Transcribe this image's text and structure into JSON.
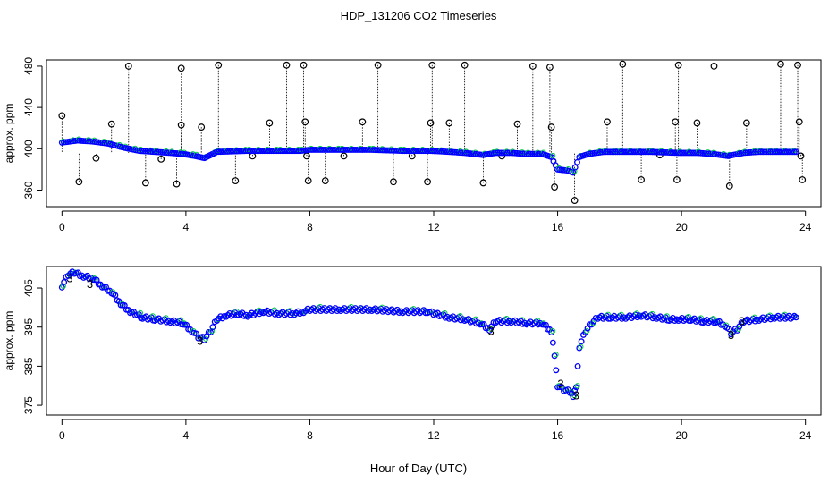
{
  "title": "HDP_131206  CO2 Timeseries",
  "xlabel": "Hour of Day (UTC)",
  "colors": {
    "outline": "#000000",
    "main": "#0000ff",
    "alt": "#00cc44",
    "spike": "#000000"
  },
  "chart_data": [
    {
      "type": "scatter",
      "ylabel": "approx. ppm",
      "xlim": [
        -0.5,
        24.5
      ],
      "ylim": [
        344,
        486
      ],
      "xticks": [
        0,
        4,
        8,
        12,
        16,
        20,
        24
      ],
      "yticks": [
        360,
        400,
        440,
        480
      ],
      "series": [
        {
          "values": [
            [
              0.0,
              406
            ],
            [
              0.5,
              408
            ],
            [
              1.0,
              407
            ],
            [
              1.5,
              405
            ],
            [
              2.0,
              401
            ],
            [
              2.5,
              398
            ],
            [
              3.0,
              397
            ],
            [
              3.5,
              396
            ],
            [
              3.9,
              395
            ],
            [
              4.3,
              393
            ],
            [
              4.6,
              391
            ],
            [
              5.0,
              397
            ],
            [
              6.0,
              398
            ],
            [
              7.0,
              398
            ],
            [
              7.7,
              398
            ],
            [
              8.0,
              399
            ],
            [
              9.0,
              399
            ],
            [
              10.0,
              399
            ],
            [
              11.0,
              398
            ],
            [
              11.9,
              398
            ],
            [
              12.5,
              397
            ],
            [
              13.0,
              396
            ],
            [
              13.6,
              394
            ],
            [
              14.0,
              396
            ],
            [
              14.5,
              396
            ],
            [
              15.0,
              395
            ],
            [
              15.5,
              395
            ],
            [
              15.8,
              392
            ],
            [
              16.0,
              380
            ],
            [
              16.3,
              379
            ],
            [
              16.5,
              377
            ],
            [
              16.7,
              392
            ],
            [
              17.0,
              395
            ],
            [
              17.5,
              397
            ],
            [
              18.0,
              397
            ],
            [
              19.0,
              397
            ],
            [
              19.9,
              396
            ],
            [
              20.5,
              396
            ],
            [
              21.0,
              395
            ],
            [
              21.5,
              393
            ],
            [
              22.0,
              396
            ],
            [
              22.5,
              397
            ],
            [
              23.0,
              397
            ],
            [
              23.7,
              397
            ]
          ]
        },
        {
          "values": [
            [
              0.0,
              432
            ],
            [
              0.55,
              368
            ],
            [
              1.1,
              391
            ],
            [
              1.6,
              424
            ],
            [
              2.15,
              480
            ],
            [
              2.7,
              367
            ],
            [
              3.2,
              390
            ],
            [
              3.7,
              366
            ],
            [
              3.85,
              478
            ],
            [
              3.85,
              423
            ],
            [
              4.5,
              421
            ],
            [
              5.05,
              481
            ],
            [
              5.6,
              369
            ],
            [
              6.15,
              393
            ],
            [
              6.7,
              425
            ],
            [
              7.25,
              481
            ],
            [
              7.8,
              481
            ],
            [
              7.85,
              426
            ],
            [
              7.9,
              393
            ],
            [
              7.95,
              369
            ],
            [
              8.5,
              369
            ],
            [
              9.1,
              393
            ],
            [
              9.7,
              426
            ],
            [
              10.2,
              481
            ],
            [
              10.7,
              368
            ],
            [
              11.3,
              393
            ],
            [
              11.8,
              368
            ],
            [
              11.9,
              425
            ],
            [
              11.95,
              481
            ],
            [
              12.5,
              425
            ],
            [
              13.0,
              481
            ],
            [
              13.6,
              367
            ],
            [
              14.2,
              393
            ],
            [
              14.7,
              424
            ],
            [
              15.2,
              480
            ],
            [
              15.75,
              479
            ],
            [
              15.8,
              421
            ],
            [
              15.9,
              363
            ],
            [
              16.55,
              350
            ],
            [
              17.6,
              426
            ],
            [
              18.1,
              482
            ],
            [
              18.7,
              370
            ],
            [
              19.3,
              394
            ],
            [
              19.8,
              426
            ],
            [
              19.9,
              481
            ],
            [
              19.85,
              370
            ],
            [
              20.5,
              425
            ],
            [
              21.05,
              480
            ],
            [
              21.55,
              364
            ],
            [
              22.1,
              425
            ],
            [
              23.2,
              482
            ],
            [
              23.75,
              481
            ],
            [
              23.8,
              426
            ],
            [
              23.85,
              393
            ],
            [
              23.9,
              370
            ]
          ]
        }
      ]
    },
    {
      "type": "scatter",
      "ylabel": "approx. ppm",
      "xlim": [
        -0.5,
        24.5
      ],
      "ylim": [
        372.5,
        410.5
      ],
      "xticks": [
        0,
        4,
        8,
        12,
        16,
        20,
        24
      ],
      "yticks": [
        375,
        385,
        395,
        405
      ],
      "series": [
        {
          "values": [
            [
              0.0,
              405.5
            ],
            [
              0.2,
              408.5
            ],
            [
              0.4,
              409.0
            ],
            [
              0.7,
              408.0
            ],
            [
              1.0,
              407.5
            ],
            [
              1.3,
              405.5
            ],
            [
              1.6,
              404.0
            ],
            [
              1.9,
              401.0
            ],
            [
              2.2,
              399.0
            ],
            [
              2.6,
              397.5
            ],
            [
              3.0,
              397.0
            ],
            [
              3.5,
              396.5
            ],
            [
              3.9,
              396.0
            ],
            [
              4.2,
              394.0
            ],
            [
              4.4,
              392.5
            ],
            [
              4.6,
              392.0
            ],
            [
              4.8,
              394.0
            ],
            [
              5.0,
              397.0
            ],
            [
              5.3,
              398.0
            ],
            [
              5.7,
              398.5
            ],
            [
              6.0,
              398.0
            ],
            [
              6.5,
              399.0
            ],
            [
              7.0,
              398.5
            ],
            [
              7.5,
              398.5
            ],
            [
              7.8,
              399.0
            ],
            [
              8.0,
              399.5
            ],
            [
              9.0,
              399.5
            ],
            [
              10.0,
              399.5
            ],
            [
              11.0,
              399.0
            ],
            [
              11.8,
              399.0
            ],
            [
              12.0,
              398.5
            ],
            [
              12.5,
              397.5
            ],
            [
              13.0,
              397.0
            ],
            [
              13.5,
              396.0
            ],
            [
              13.8,
              394.5
            ],
            [
              14.0,
              396.5
            ],
            [
              14.5,
              396.5
            ],
            [
              15.0,
              396.0
            ],
            [
              15.5,
              396.0
            ],
            [
              15.8,
              394.0
            ],
            [
              15.9,
              388.0
            ],
            [
              16.0,
              380.0
            ],
            [
              16.2,
              379.0
            ],
            [
              16.4,
              378.5
            ],
            [
              16.5,
              377.5
            ],
            [
              16.6,
              380.0
            ],
            [
              16.7,
              390.0
            ],
            [
              16.9,
              394.0
            ],
            [
              17.1,
              396.0
            ],
            [
              17.3,
              397.5
            ],
            [
              17.7,
              397.5
            ],
            [
              18.2,
              397.5
            ],
            [
              18.7,
              398.0
            ],
            [
              19.2,
              397.5
            ],
            [
              19.6,
              397.0
            ],
            [
              19.9,
              397.0
            ],
            [
              20.3,
              397.0
            ],
            [
              20.7,
              396.5
            ],
            [
              21.1,
              396.5
            ],
            [
              21.4,
              395.5
            ],
            [
              21.6,
              393.5
            ],
            [
              21.8,
              394.5
            ],
            [
              22.0,
              396.5
            ],
            [
              22.5,
              397.0
            ],
            [
              23.0,
              397.5
            ],
            [
              23.7,
              397.5
            ]
          ]
        }
      ],
      "annotations": [
        {
          "text": "3",
          "x": 0.25,
          "y": 406.5
        },
        {
          "text": "3",
          "x": 0.9,
          "y": 405.0
        },
        {
          "text": "3",
          "x": 4.45,
          "y": 390.5
        },
        {
          "text": "3",
          "x": 13.85,
          "y": 393.0
        },
        {
          "text": "3",
          "x": 16.1,
          "y": 379.5
        },
        {
          "text": "3",
          "x": 16.6,
          "y": 376.5
        },
        {
          "text": "3",
          "x": 21.6,
          "y": 392.0
        },
        {
          "text": "3",
          "x": 21.95,
          "y": 395.5
        }
      ]
    }
  ]
}
